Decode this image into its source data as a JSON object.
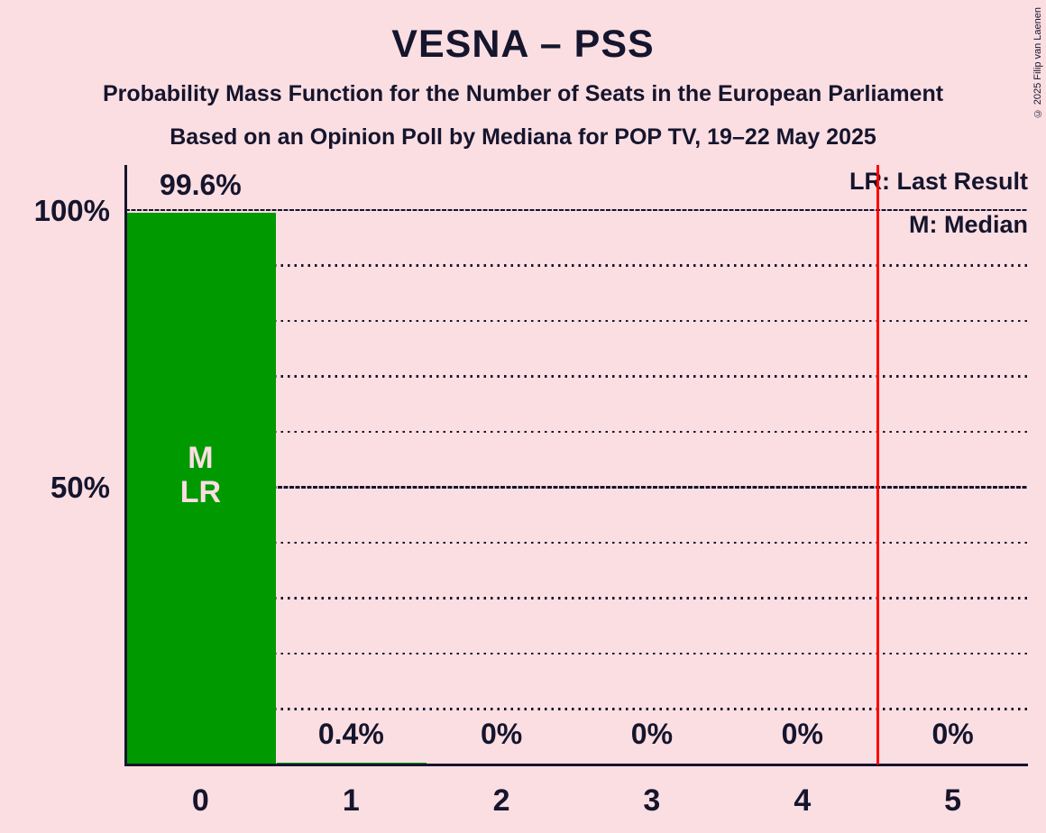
{
  "title": "VESNA – PSS",
  "subtitle1": "Probability Mass Function for the Number of Seats in the European Parliament",
  "subtitle2": "Based on an Opinion Poll by Mediana for POP TV, 19–22 May 2025",
  "copyright": "© 2025 Filip van Laenen",
  "legend": {
    "lr": "LR: Last Result",
    "m": "M: Median"
  },
  "colors": {
    "background": "#fbdee2",
    "ink": "#15152d",
    "bar_green": "#009900",
    "red_line": "#ff0000",
    "bar_annotation_text": "#fbdee2"
  },
  "chart_data": {
    "type": "bar",
    "title": "VESNA – PSS",
    "subtitle": "Probability Mass Function for the Number of Seats in the European Parliament",
    "source_line": "Based on an Opinion Poll by Mediana for POP TV, 19–22 May 2025",
    "categories": [
      "0",
      "1",
      "2",
      "3",
      "4",
      "5"
    ],
    "values": [
      99.6,
      0.4,
      0,
      0,
      0,
      0
    ],
    "value_labels": [
      "99.6%",
      "0.4%",
      "0%",
      "0%",
      "0%",
      "0%"
    ],
    "ylim": [
      0,
      100
    ],
    "yticks": [
      100,
      50
    ],
    "ytick_labels": [
      "100%",
      "50%"
    ],
    "dotted_gridlines_pct": [
      10,
      20,
      30,
      40,
      60,
      70,
      80,
      90
    ],
    "solid_gridlines_pct": [
      50,
      100
    ],
    "grid": "dotted horizontal",
    "legend_position": "top-right",
    "legend_entries": [
      "LR: Last Result",
      "M: Median"
    ],
    "red_line_x": 4.5,
    "bar_annotations": [
      {
        "category_index": 0,
        "lines": [
          "M",
          "LR"
        ]
      }
    ]
  }
}
